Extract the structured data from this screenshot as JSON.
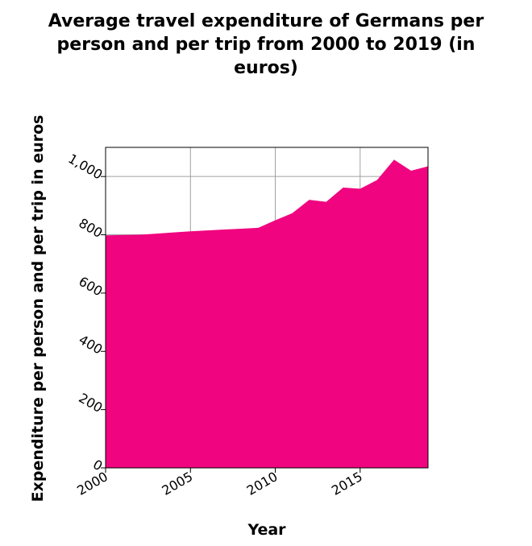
{
  "chart_data": {
    "type": "area",
    "title": "Average travel expenditure of Germans per person and per trip from 2000 to 2019 (in euros)",
    "title_lines": [
      "Average travel expenditure of Germans per",
      "person and per trip from 2000 to 2019 (in",
      "euros)"
    ],
    "xlabel": "Year",
    "ylabel": "Expenditure per person and per trip in euros",
    "xlim": [
      2000,
      2019
    ],
    "ylim": [
      0,
      1100
    ],
    "x_ticks": [
      2000,
      2005,
      2010,
      2015
    ],
    "x_tick_labels": [
      "2000",
      "2005",
      "2010",
      "2015"
    ],
    "y_ticks": [
      0,
      200,
      400,
      600,
      800,
      1000
    ],
    "y_tick_labels": [
      "0",
      "200",
      "400",
      "600",
      "800",
      "1,000"
    ],
    "grid": true,
    "series": [
      {
        "x": [
          2000,
          2001,
          2002,
          2003,
          2004,
          2005,
          2006,
          2007,
          2008,
          2009,
          2010,
          2011,
          2012,
          2013,
          2014,
          2015,
          2016,
          2017,
          2018,
          2019
        ],
        "values": [
          798,
          799,
          800,
          804,
          808,
          812,
          815,
          818,
          821,
          824,
          850,
          874,
          920,
          913,
          962,
          958,
          988,
          1058,
          1020,
          1035
        ],
        "color": "#f0047f"
      }
    ]
  }
}
